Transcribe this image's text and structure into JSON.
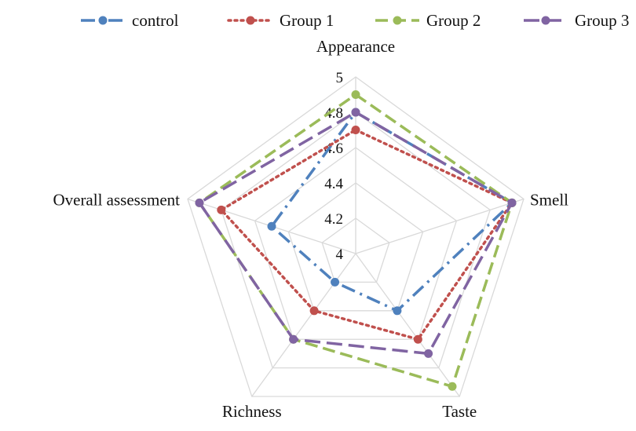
{
  "chart_data": {
    "type": "radar",
    "axes": [
      "Appearance",
      "Smell",
      "Taste",
      "Richness",
      "Overall assessment"
    ],
    "r_ticks": [
      "4",
      "4.2",
      "4.4",
      "4.6",
      "4.8",
      "5"
    ],
    "r_range": [
      4,
      5
    ],
    "grid": true,
    "legend_position": "top",
    "series": [
      {
        "name": "control",
        "color": "#4f81bd",
        "dash": "dash-dot",
        "values": [
          4.8,
          4.93,
          4.4,
          4.2,
          4.5
        ]
      },
      {
        "name": "Group 1",
        "color": "#c0504d",
        "dash": "dot",
        "values": [
          4.7,
          4.93,
          4.6,
          4.4,
          4.8
        ]
      },
      {
        "name": "Group 2",
        "color": "#9bbb59",
        "dash": "dash",
        "values": [
          4.9,
          4.93,
          4.93,
          4.6,
          4.93
        ]
      },
      {
        "name": "Group 3",
        "color": "#8064a2",
        "dash": "long-dash",
        "values": [
          4.8,
          4.93,
          4.7,
          4.6,
          4.93
        ]
      }
    ]
  }
}
